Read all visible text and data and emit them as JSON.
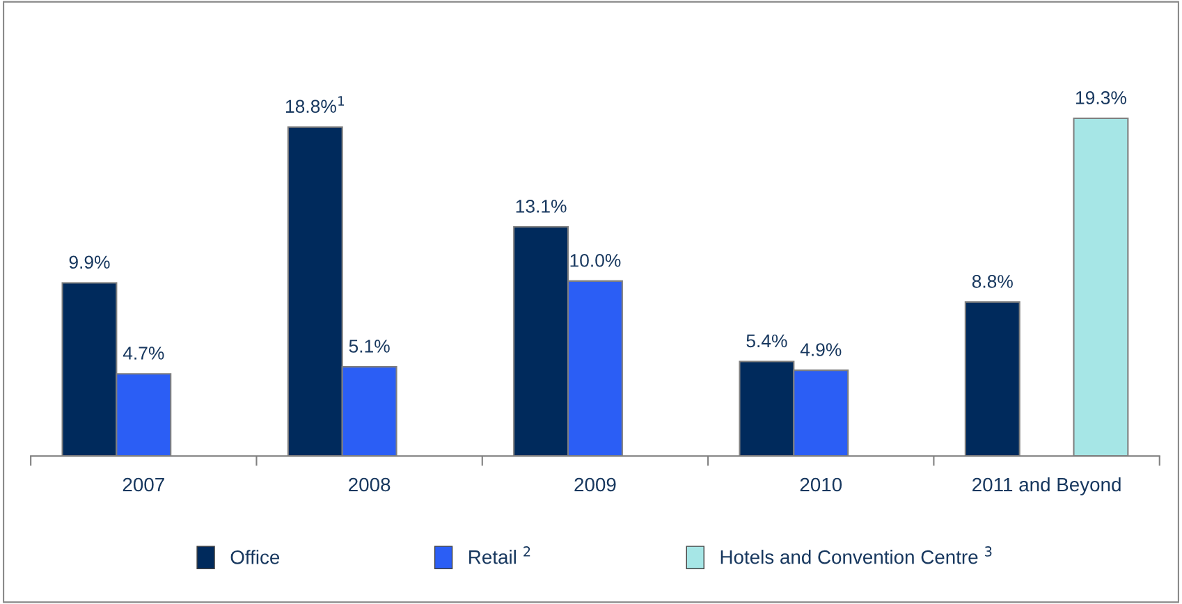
{
  "chart_data": {
    "type": "bar",
    "categories": [
      "2007",
      "2008",
      "2009",
      "2010",
      "2011 and Beyond"
    ],
    "series": [
      {
        "name": "Office",
        "color": "#002a5c",
        "values": [
          9.9,
          18.8,
          13.1,
          5.4,
          8.8
        ],
        "value_labels": [
          "9.9%",
          "18.8%$^{1}$",
          "13.1%",
          "5.4%",
          "8.8%"
        ]
      },
      {
        "name": "Retail $^{2}$",
        "color": "#2b5ef5",
        "values": [
          4.7,
          5.1,
          10.0,
          4.9,
          null
        ],
        "value_labels": [
          "4.7%",
          "5.1%",
          "10.0%",
          "4.9%",
          null
        ]
      },
      {
        "name": "Hotels and Convention Centre $^{3}$",
        "color": "#a6e6e6",
        "values": [
          null,
          null,
          null,
          null,
          19.3
        ],
        "value_labels": [
          null,
          null,
          null,
          null,
          "19.3%"
        ]
      }
    ],
    "legend": "bottom",
    "grid": false
  }
}
